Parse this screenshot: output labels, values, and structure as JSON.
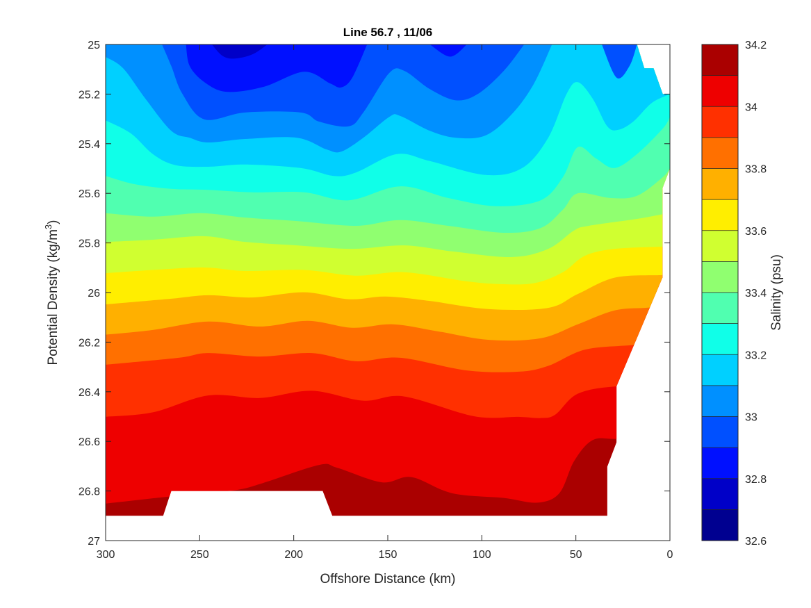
{
  "chart_data": {
    "type": "contour",
    "title": "Line 56.7 , 11/06",
    "xlabel": "Offshore Distance (km)",
    "ylabel": {
      "text": "Potential Density (kg/m",
      "sup": "3",
      "suffix": ")"
    },
    "colorbar_label": "Salinity (psu)",
    "xlim": [
      300,
      0
    ],
    "x_reversed": true,
    "ylim": [
      25,
      27
    ],
    "y_reversed": true,
    "xticks": [
      300,
      250,
      200,
      150,
      100,
      50,
      0
    ],
    "yticks": [
      25,
      25.2,
      25.4,
      25.6,
      25.8,
      26,
      26.2,
      26.4,
      26.6,
      26.8,
      27
    ],
    "ytick_labels": [
      "25",
      "25.2",
      "25.4",
      "25.6",
      "25.8",
      "26",
      "26.2",
      "26.4",
      "26.6",
      "26.8",
      "27"
    ],
    "colorbar": {
      "range": [
        32.6,
        34.2
      ],
      "ticks": [
        "32.6",
        "32.8",
        "33",
        "33.2",
        "33.4",
        "33.6",
        "33.8",
        "34",
        "34.2"
      ],
      "levels": [
        32.6,
        32.7,
        32.8,
        32.9,
        33.0,
        33.1,
        33.2,
        33.3,
        33.4,
        33.5,
        33.6,
        33.7,
        33.8,
        33.9,
        34.0,
        34.1,
        34.2
      ],
      "band_colors": [
        "#000090",
        "#0000C8",
        "#0010FF",
        "#0050FF",
        "#0090FF",
        "#00D0FF",
        "#10FFE8",
        "#50FFB0",
        "#90FF70",
        "#D0FF30",
        "#FFEE00",
        "#FFB000",
        "#FF7000",
        "#FF3000",
        "#EE0000",
        "#AA0000"
      ]
    },
    "data_domain": [
      [
        300,
        25
      ],
      [
        17.5,
        25
      ],
      [
        13.6,
        25.096
      ],
      [
        8.7,
        25.096
      ],
      [
        3.8,
        25.2
      ],
      [
        0,
        25.2
      ],
      [
        0,
        25.5
      ],
      [
        4,
        25.58
      ],
      [
        4,
        25.94
      ],
      [
        28.4,
        26.378
      ],
      [
        28.4,
        26.604
      ],
      [
        33.3,
        26.702
      ],
      [
        33.3,
        26.9
      ],
      [
        179.5,
        26.9
      ],
      [
        184.6,
        26.8
      ],
      [
        265.1,
        26.8
      ],
      [
        269.4,
        26.9
      ],
      [
        300,
        26.9
      ]
    ],
    "isolines": [
      {
        "level": 34.1,
        "segments": [
          [
            [
              300,
              26.851
            ],
            [
              266.6,
              26.823
            ],
            [
              250,
              26.812
            ],
            [
              229.7,
              26.795
            ],
            [
              216,
              26.767
            ],
            [
              186.5,
              26.695
            ],
            [
              176.7,
              26.707
            ],
            [
              153.2,
              26.765
            ],
            [
              137.4,
              26.744
            ],
            [
              115.8,
              26.809
            ],
            [
              88.3,
              26.828
            ],
            [
              70.6,
              26.847
            ],
            [
              58.8,
              26.809
            ],
            [
              50.9,
              26.679
            ],
            [
              41.1,
              26.595
            ],
            [
              28.4,
              26.59
            ],
            [
              0,
              26.59
            ]
          ]
        ]
      },
      {
        "level": 34.0,
        "segments": [
          [
            [
              300,
              26.501
            ],
            [
              274.9,
              26.483
            ],
            [
              245.5,
              26.415
            ],
            [
              217.9,
              26.425
            ],
            [
              190.4,
              26.396
            ],
            [
              163,
              26.436
            ],
            [
              141.3,
              26.419
            ],
            [
              104,
              26.499
            ],
            [
              80.5,
              26.501
            ],
            [
              68.7,
              26.506
            ],
            [
              60.9,
              26.492
            ],
            [
              49,
              26.408
            ],
            [
              28.4,
              26.378
            ],
            [
              0,
              26.378
            ]
          ]
        ]
      },
      {
        "level": 33.9,
        "segments": [
          [
            [
              300,
              26.291
            ],
            [
              261.2,
              26.263
            ],
            [
              245.5,
              26.244
            ],
            [
              217.9,
              26.258
            ],
            [
              190.4,
              26.244
            ],
            [
              166.9,
              26.277
            ],
            [
              143.3,
              26.263
            ],
            [
              108,
              26.314
            ],
            [
              80.5,
              26.319
            ],
            [
              64.8,
              26.296
            ],
            [
              45.1,
              26.23
            ],
            [
              19.6,
              26.212
            ],
            [
              0,
              26.2
            ]
          ]
        ]
      },
      {
        "level": 33.8,
        "segments": [
          [
            [
              300,
              26.17
            ],
            [
              274.9,
              26.151
            ],
            [
              245.5,
              26.117
            ],
            [
              217.9,
              26.137
            ],
            [
              192.4,
              26.114
            ],
            [
              168.9,
              26.142
            ],
            [
              147.3,
              26.128
            ],
            [
              123.7,
              26.156
            ],
            [
              96.1,
              26.191
            ],
            [
              68.7,
              26.184
            ],
            [
              49,
              26.128
            ],
            [
              29.4,
              26.072
            ],
            [
              11.7,
              26.061
            ],
            [
              0,
              26.05
            ]
          ]
        ]
      },
      {
        "level": 33.7,
        "segments": [
          [
            [
              300,
              26.048
            ],
            [
              265.1,
              26.025
            ],
            [
              245.5,
              26.011
            ],
            [
              221.9,
              26.02
            ],
            [
              194.4,
              25.999
            ],
            [
              170.8,
              26.027
            ],
            [
              151.1,
              26.016
            ],
            [
              127.6,
              26.034
            ],
            [
              96.1,
              26.067
            ],
            [
              64.8,
              26.062
            ],
            [
              49,
              26.006
            ],
            [
              29.4,
              25.94
            ],
            [
              5.8,
              25.93
            ],
            [
              0,
              25.93
            ]
          ]
        ]
      },
      {
        "level": 33.6,
        "segments": [
          [
            [
              300,
              25.922
            ],
            [
              274.9,
              25.909
            ],
            [
              247.5,
              25.899
            ],
            [
              225.8,
              25.913
            ],
            [
              194.5,
              25.909
            ],
            [
              166.9,
              25.932
            ],
            [
              141.3,
              25.918
            ],
            [
              108,
              25.955
            ],
            [
              90,
              25.966
            ],
            [
              72,
              25.962
            ],
            [
              56.9,
              25.918
            ],
            [
              45.2,
              25.852
            ],
            [
              29.4,
              25.824
            ],
            [
              3.8,
              25.815
            ],
            [
              0,
              25.815
            ]
          ]
        ]
      },
      {
        "level": 33.5,
        "segments": [
          [
            [
              300,
              25.796
            ],
            [
              274.9,
              25.787
            ],
            [
              247.5,
              25.773
            ],
            [
              225.8,
              25.796
            ],
            [
              198.3,
              25.81
            ],
            [
              168.9,
              25.824
            ],
            [
              141.3,
              25.81
            ],
            [
              115.8,
              25.834
            ],
            [
              84.3,
              25.857
            ],
            [
              64.7,
              25.824
            ],
            [
              51,
              25.75
            ],
            [
              43.2,
              25.731
            ],
            [
              17.5,
              25.703
            ],
            [
              3.8,
              25.684
            ],
            [
              0,
              25.68
            ]
          ]
        ]
      },
      {
        "level": 33.4,
        "segments": [
          [
            [
              300,
              25.68
            ],
            [
              274.9,
              25.694
            ],
            [
              249.5,
              25.68
            ],
            [
              225.8,
              25.698
            ],
            [
              198.3,
              25.712
            ],
            [
              166.9,
              25.731
            ],
            [
              143.4,
              25.708
            ],
            [
              117.8,
              25.731
            ],
            [
              88.3,
              25.759
            ],
            [
              68.7,
              25.74
            ],
            [
              56.9,
              25.666
            ],
            [
              49,
              25.6
            ],
            [
              31.4,
              25.619
            ],
            [
              17.5,
              25.61
            ],
            [
              3.8,
              25.535
            ],
            [
              0,
              25.498
            ]
          ]
        ]
      },
      {
        "level": 33.3,
        "segments": [
          [
            [
              300,
              25.53
            ],
            [
              284.7,
              25.563
            ],
            [
              265.1,
              25.582
            ],
            [
              245.5,
              25.586
            ],
            [
              221.9,
              25.596
            ],
            [
              194.5,
              25.596
            ],
            [
              170.8,
              25.628
            ],
            [
              143.4,
              25.572
            ],
            [
              117.8,
              25.619
            ],
            [
              92.2,
              25.652
            ],
            [
              68.7,
              25.628
            ],
            [
              56.9,
              25.535
            ],
            [
              49,
              25.414
            ],
            [
              39.2,
              25.46
            ],
            [
              29.4,
              25.498
            ],
            [
              17.5,
              25.442
            ],
            [
              3.8,
              25.339
            ],
            [
              0,
              25.292
            ]
          ]
        ]
      },
      {
        "level": 33.2,
        "segments": [
          [
            [
              300,
              25.306
            ],
            [
              286.7,
              25.358
            ],
            [
              274.9,
              25.442
            ],
            [
              263.1,
              25.486
            ],
            [
              245.5,
              25.493
            ],
            [
              225.8,
              25.484
            ],
            [
              196.4,
              25.498
            ],
            [
              178.7,
              25.53
            ],
            [
              166.9,
              25.516
            ],
            [
              145.3,
              25.442
            ],
            [
              127.6,
              25.47
            ],
            [
              98.1,
              25.526
            ],
            [
              78.5,
              25.498
            ],
            [
              64.7,
              25.376
            ],
            [
              54.9,
              25.199
            ],
            [
              49,
              25.152
            ],
            [
              41.1,
              25.218
            ],
            [
              33.3,
              25.33
            ],
            [
              27.4,
              25.344
            ],
            [
              19.5,
              25.311
            ],
            [
              9.7,
              25.236
            ],
            [
              0,
              25.2
            ]
          ]
        ]
      },
      {
        "level": 33.1,
        "segments": [
          [
            [
              300,
              25.05
            ],
            [
              290.7,
              25.096
            ],
            [
              278.9,
              25.218
            ],
            [
              265.1,
              25.348
            ],
            [
              255.3,
              25.376
            ],
            [
              245.5,
              25.395
            ],
            [
              225.8,
              25.381
            ],
            [
              198.3,
              25.376
            ],
            [
              182.6,
              25.423
            ],
            [
              174.8,
              25.432
            ],
            [
              163,
              25.376
            ],
            [
              149.2,
              25.292
            ],
            [
              143.4,
              25.288
            ],
            [
              127.6,
              25.348
            ],
            [
              113.8,
              25.376
            ],
            [
              98.1,
              25.367
            ],
            [
              84.3,
              25.283
            ],
            [
              72.6,
              25.162
            ],
            [
              62.7,
              25.0
            ]
          ]
        ]
      },
      {
        "level": 33.0,
        "segments": [
          [
            [
              270,
              25.0
            ],
            [
              265.1,
              25.087
            ],
            [
              259.2,
              25.199
            ],
            [
              247.5,
              25.302
            ],
            [
              225.8,
              25.274
            ],
            [
              196.4,
              25.274
            ],
            [
              186.5,
              25.311
            ],
            [
              170.8,
              25.33
            ],
            [
              163,
              25.274
            ],
            [
              149.2,
              25.115
            ],
            [
              141.3,
              25.106
            ],
            [
              127.6,
              25.18
            ],
            [
              113.8,
              25.225
            ],
            [
              102,
              25.199
            ],
            [
              88.3,
              25.106
            ],
            [
              77.5,
              25.0
            ]
          ],
          [
            [
              36.2,
              25.0
            ],
            [
              28.3,
              25.134
            ],
            [
              21.5,
              25.087
            ],
            [
              17.5,
              25.0
            ]
          ]
        ]
      },
      {
        "level": 32.9,
        "segments": [
          [
            [
              257.3,
              25.0
            ],
            [
              255.3,
              25.087
            ],
            [
              247.5,
              25.152
            ],
            [
              235.7,
              25.191
            ],
            [
              216.1,
              25.171
            ],
            [
              194.5,
              25.11
            ],
            [
              180.7,
              25.157
            ],
            [
              174.8,
              25.173
            ],
            [
              168.9,
              25.134
            ],
            [
              161,
              25.0
            ]
          ],
          [
            [
              127.6,
              25.0
            ],
            [
              116.8,
              25.049
            ],
            [
              108,
              25.0
            ]
          ]
        ]
      },
      {
        "level": 32.8,
        "segments": [
          [
            [
              243.5,
              25.0
            ],
            [
              238,
              25.045
            ],
            [
              231.7,
              25.057
            ],
            [
              222,
              25.04
            ],
            [
              214,
              25.0
            ]
          ]
        ]
      }
    ]
  }
}
